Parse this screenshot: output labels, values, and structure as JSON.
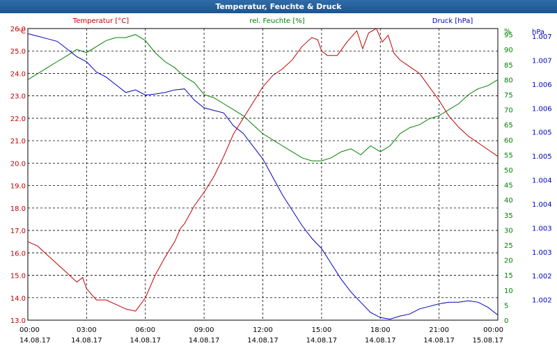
{
  "title": "Temperatur, Feuchte & Druck",
  "colors": {
    "temperature": "#c00000",
    "humidity": "#008000",
    "pressure": "#0000c0",
    "title_bar": "#1f5b96"
  },
  "chart_data": {
    "type": "line",
    "title": "Temperatur, Feuchte & Druck",
    "grid": true,
    "x_ticks": [
      {
        "time": "00:00",
        "date": "14.08.17"
      },
      {
        "time": "03:00",
        "date": "14.08.17"
      },
      {
        "time": "06:00",
        "date": "14.08.17"
      },
      {
        "time": "09:00",
        "date": "14.08.17"
      },
      {
        "time": "12:00",
        "date": "14.08.17"
      },
      {
        "time": "15:00",
        "date": "14.08.17"
      },
      {
        "time": "18:00",
        "date": "14.08.17"
      },
      {
        "time": "21:00",
        "date": "14.08.17"
      },
      {
        "time": "00:00",
        "date": "15.08.17"
      }
    ],
    "x_range_hours": [
      0,
      24
    ],
    "axes": {
      "temperature": {
        "label": "Temperatur [°C]",
        "unit": "°C",
        "range": [
          13.0,
          26.0
        ],
        "tick_labels": [
          "13.0",
          "14.0",
          "15.0",
          "16.0",
          "17.0",
          "18.0",
          "19.0",
          "20.0",
          "21.0",
          "22.0",
          "23.0",
          "24.0",
          "25.0",
          "26.0"
        ]
      },
      "humidity": {
        "label": "rel. Feuchte [%]",
        "unit": "%",
        "range": [
          0,
          97
        ],
        "tick_labels": [
          "0",
          "5",
          "10",
          "15",
          "20",
          "25",
          "30",
          "35",
          "40",
          "45",
          "50",
          "55",
          "60",
          "65",
          "70",
          "75",
          "80",
          "85",
          "90",
          "95"
        ]
      },
      "pressure": {
        "label": "Druck [hPa]",
        "unit": "hPa",
        "range": [
          1001.7,
          1007.4
        ],
        "tick_labels": [
          "1.002",
          "1.002",
          "1.003",
          "1.003",
          "1.004",
          "1.004",
          "1.005",
          "1.005",
          "1.006",
          "1.006",
          "1.007",
          "1.007"
        ]
      }
    },
    "series": [
      {
        "name": "Temperatur [°C]",
        "axis": "temperature",
        "color": "#c00000",
        "x": [
          0,
          0.5,
          1,
          1.5,
          2,
          2.5,
          2.8,
          3,
          3.5,
          4,
          4.5,
          5,
          5.5,
          6,
          6.5,
          7,
          7.5,
          7.8,
          8,
          8.5,
          9,
          9.5,
          10,
          10.5,
          11,
          11.5,
          12,
          12.5,
          13,
          13.5,
          14,
          14.5,
          14.8,
          15,
          15.3,
          15.8,
          16.3,
          16.8,
          17.1,
          17.4,
          17.8,
          18.1,
          18.4,
          18.7,
          19,
          19.5,
          20,
          20.5,
          21,
          21.5,
          22,
          22.5,
          23,
          23.5,
          24
        ],
        "y": [
          16.5,
          16.3,
          15.9,
          15.5,
          15.1,
          14.7,
          14.9,
          14.4,
          13.9,
          13.9,
          13.7,
          13.5,
          13.4,
          14.0,
          15.0,
          15.8,
          16.5,
          17.1,
          17.3,
          18.1,
          18.7,
          19.4,
          20.3,
          21.3,
          22.0,
          22.7,
          23.4,
          23.9,
          24.2,
          24.6,
          25.2,
          25.6,
          25.5,
          25.0,
          24.8,
          24.8,
          25.4,
          25.9,
          25.1,
          25.8,
          26.0,
          25.4,
          25.7,
          24.9,
          24.6,
          24.3,
          24.0,
          23.4,
          22.8,
          22.1,
          21.6,
          21.2,
          20.9,
          20.6,
          20.3
        ]
      },
      {
        "name": "rel. Feuchte [%]",
        "axis": "humidity",
        "color": "#008000",
        "x": [
          0,
          0.5,
          1,
          1.5,
          2,
          2.5,
          3,
          3.5,
          4,
          4.5,
          5,
          5.5,
          6,
          6.5,
          7,
          7.5,
          8,
          8.5,
          9,
          9.5,
          10,
          10.5,
          11,
          11.5,
          12,
          12.5,
          13,
          13.5,
          14,
          14.5,
          15,
          15.5,
          16,
          16.5,
          17,
          17.5,
          18,
          18.5,
          19,
          19.5,
          20,
          20.5,
          21,
          21.5,
          22,
          22.5,
          23,
          23.5,
          24
        ],
        "y": [
          80,
          82,
          84,
          86,
          88,
          90,
          89,
          91,
          93,
          94,
          94,
          95,
          93,
          89,
          86,
          84,
          81,
          79,
          75,
          74,
          72,
          70,
          68,
          65,
          62,
          60,
          58,
          56,
          54,
          53,
          53,
          54,
          56,
          57,
          55,
          58,
          56,
          58,
          62,
          64,
          65,
          67,
          68,
          70,
          72,
          75,
          77,
          78,
          80
        ]
      },
      {
        "name": "Druck [hPa]",
        "axis": "pressure",
        "color": "#0000c0",
        "x": [
          0,
          0.5,
          1,
          1.5,
          2,
          2.5,
          3,
          3.5,
          4,
          4.5,
          5,
          5.5,
          6,
          6.5,
          7,
          7.5,
          8,
          8.5,
          9,
          9.5,
          10,
          10.5,
          11,
          11.5,
          12,
          12.5,
          13,
          13.5,
          14,
          14.5,
          15,
          15.5,
          16,
          16.5,
          17,
          17.5,
          18,
          18.5,
          19,
          19.5,
          20,
          20.5,
          21,
          21.5,
          22,
          22.5,
          23,
          23.5,
          24
        ],
        "y": [
          1007.3,
          1007.25,
          1007.2,
          1007.15,
          1007.0,
          1006.85,
          1006.75,
          1006.55,
          1006.45,
          1006.3,
          1006.15,
          1006.2,
          1006.1,
          1006.12,
          1006.15,
          1006.2,
          1006.22,
          1006.0,
          1005.85,
          1005.8,
          1005.75,
          1005.5,
          1005.35,
          1005.1,
          1004.85,
          1004.5,
          1004.15,
          1003.85,
          1003.55,
          1003.3,
          1003.1,
          1002.8,
          1002.5,
          1002.25,
          1002.05,
          1001.85,
          1001.75,
          1001.72,
          1001.78,
          1001.82,
          1001.92,
          1001.97,
          1002.02,
          1002.05,
          1002.05,
          1002.08,
          1002.05,
          1001.95,
          1001.8
        ]
      }
    ]
  }
}
